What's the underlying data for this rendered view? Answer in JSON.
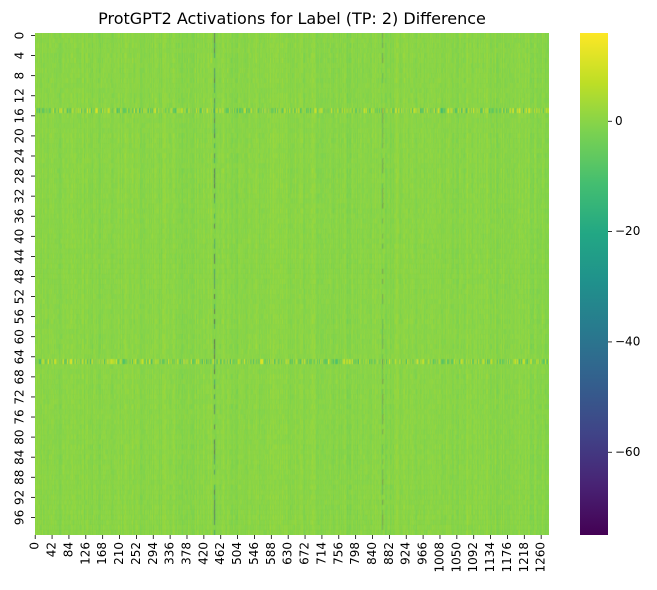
{
  "chart_data": {
    "type": "heatmap",
    "title": "ProtGPT2 Activations for Label (TP: 2) Difference",
    "xlabel": "",
    "ylabel": "",
    "n_rows": 100,
    "n_cols": 1280,
    "x_tick_labels": [
      "0",
      "42",
      "84",
      "126",
      "168",
      "210",
      "252",
      "294",
      "336",
      "378",
      "420",
      "462",
      "504",
      "546",
      "588",
      "630",
      "672",
      "714",
      "756",
      "798",
      "840",
      "882",
      "924",
      "966",
      "1008",
      "1050",
      "1092",
      "1134",
      "1176",
      "1218",
      "1260"
    ],
    "y_tick_labels": [
      "0",
      "4",
      "8",
      "12",
      "16",
      "20",
      "24",
      "28",
      "32",
      "36",
      "40",
      "44",
      "48",
      "52",
      "56",
      "60",
      "64",
      "68",
      "72",
      "76",
      "80",
      "84",
      "88",
      "92",
      "96"
    ],
    "colorbar": {
      "colormap": "viridis",
      "vmin": -75,
      "vmax": 16,
      "tick_labels": [
        "0",
        "−20",
        "−40",
        "−60"
      ],
      "tick_values": [
        0,
        -20,
        -40,
        -60
      ]
    },
    "baseline_value": 0,
    "notable_rows": [
      {
        "row": 15,
        "description": "strong mixed positive/negative stripe"
      },
      {
        "row": 65,
        "description": "strong mixed positive/negative stripe"
      }
    ],
    "notable_columns": [
      {
        "col": 447,
        "min_value": -75
      },
      {
        "col": 866,
        "min_value": -70
      }
    ],
    "grid": false,
    "legend": "colorbar-right"
  }
}
